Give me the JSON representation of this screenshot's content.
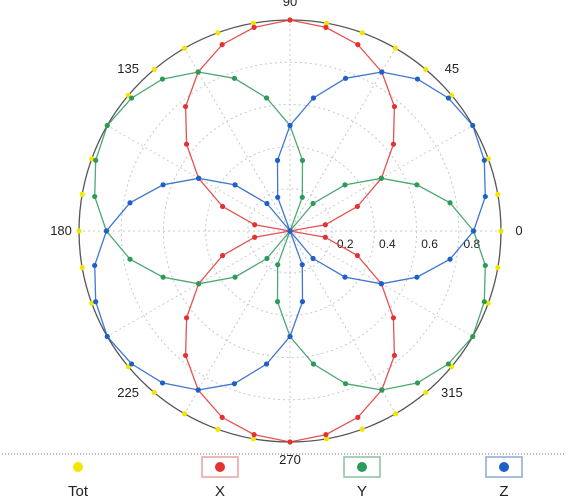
{
  "chart_data": {
    "type": "scatter",
    "subtype": "polar",
    "angle_unit": "degrees",
    "angle_ticks": [
      0,
      45,
      90,
      135,
      180,
      225,
      270,
      315
    ],
    "angle_tick_labels": [
      "0",
      "45",
      "90",
      "135",
      "180",
      "225",
      "270",
      "315"
    ],
    "radial_ticks": [
      0.2,
      0.4,
      0.6,
      0.8
    ],
    "radial_tick_labels": [
      "0.2",
      "0.4",
      "0.6",
      "0.8"
    ],
    "rlim": [
      0,
      1
    ],
    "grid": true,
    "legend_position": "bottom",
    "series": [
      {
        "name": "Tot",
        "color": "#f2e600",
        "marker": "dot",
        "line": false,
        "angles": [
          0,
          10,
          20,
          30,
          40,
          50,
          60,
          70,
          80,
          90,
          100,
          110,
          120,
          130,
          140,
          150,
          160,
          170,
          180,
          190,
          200,
          210,
          220,
          230,
          240,
          250,
          260,
          270,
          280,
          290,
          300,
          310,
          320,
          330,
          340,
          350
        ],
        "r": [
          1.0,
          1.0,
          1.0,
          1.0,
          1.0,
          1.0,
          1.0,
          1.0,
          1.0,
          1.0,
          1.0,
          1.0,
          1.0,
          1.0,
          1.0,
          1.0,
          1.0,
          1.0,
          1.0,
          1.0,
          1.0,
          1.0,
          1.0,
          1.0,
          1.0,
          1.0,
          1.0,
          1.0,
          1.0,
          1.0,
          1.0,
          1.0,
          1.0,
          1.0,
          1.0,
          1.0
        ]
      },
      {
        "name": "X",
        "color": "#e23232",
        "marker": "dot",
        "line": true,
        "angles": [
          0,
          10,
          20,
          30,
          40,
          50,
          60,
          70,
          80,
          90,
          100,
          110,
          120,
          130,
          140,
          150,
          160,
          170,
          180,
          190,
          200,
          210,
          220,
          230,
          240,
          250,
          260,
          270,
          280,
          290,
          300,
          310,
          320,
          330,
          340,
          350
        ],
        "r": [
          0.0,
          0.17,
          0.34,
          0.5,
          0.64,
          0.77,
          0.87,
          0.94,
          0.98,
          1.0,
          0.98,
          0.94,
          0.87,
          0.77,
          0.64,
          0.5,
          0.34,
          0.17,
          0.0,
          0.17,
          0.34,
          0.5,
          0.64,
          0.77,
          0.87,
          0.94,
          0.98,
          1.0,
          0.98,
          0.94,
          0.87,
          0.77,
          0.64,
          0.5,
          0.34,
          0.17
        ]
      },
      {
        "name": "Y",
        "color": "#2e9a5a",
        "marker": "dot",
        "line": true,
        "angles": [
          0,
          10,
          20,
          30,
          40,
          50,
          60,
          70,
          80,
          90,
          100,
          110,
          120,
          130,
          140,
          150,
          160,
          170,
          180,
          190,
          200,
          210,
          220,
          230,
          240,
          250,
          260,
          270,
          280,
          290,
          300,
          310,
          320,
          330,
          340,
          350
        ],
        "r": [
          0.87,
          0.77,
          0.64,
          0.5,
          0.34,
          0.17,
          0.0,
          0.17,
          0.34,
          0.5,
          0.64,
          0.77,
          0.87,
          0.94,
          0.98,
          1.0,
          0.98,
          0.94,
          0.87,
          0.77,
          0.64,
          0.5,
          0.34,
          0.17,
          0.0,
          0.17,
          0.34,
          0.5,
          0.64,
          0.77,
          0.87,
          0.94,
          0.98,
          1.0,
          0.98,
          0.94
        ]
      },
      {
        "name": "Z",
        "color": "#1f5fc8",
        "marker": "dot",
        "line": true,
        "angles": [
          0,
          10,
          20,
          30,
          40,
          50,
          60,
          70,
          80,
          90,
          100,
          110,
          120,
          130,
          140,
          150,
          160,
          170,
          180,
          190,
          200,
          210,
          220,
          230,
          240,
          250,
          260,
          270,
          280,
          290,
          300,
          310,
          320,
          330,
          340,
          350
        ],
        "r": [
          0.87,
          0.94,
          0.98,
          1.0,
          0.98,
          0.94,
          0.87,
          0.77,
          0.64,
          0.5,
          0.34,
          0.17,
          0.0,
          0.17,
          0.34,
          0.5,
          0.64,
          0.77,
          0.87,
          0.94,
          0.98,
          1.0,
          0.98,
          0.94,
          0.87,
          0.77,
          0.64,
          0.5,
          0.34,
          0.17,
          0.0,
          0.17,
          0.34,
          0.5,
          0.64,
          0.77
        ]
      }
    ]
  },
  "colors": {
    "outer_ring": "#555555",
    "grid": "#c8c8c8",
    "legend_frame_X": "#e6a0a0",
    "legend_frame_Y": "#88c0a0",
    "legend_frame_Z": "#8aa8d8"
  }
}
